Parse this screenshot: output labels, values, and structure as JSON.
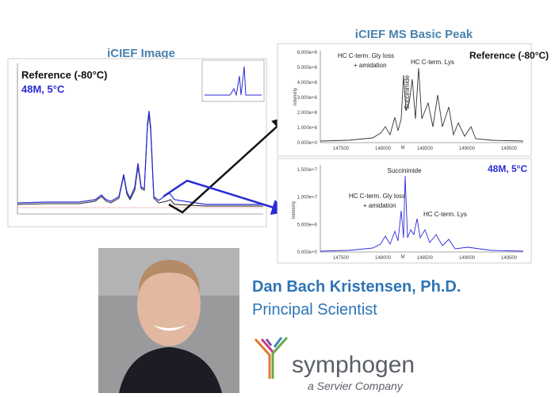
{
  "left_panel": {
    "title": "iCIEF Image",
    "legend": [
      "Reference (-80°C)",
      "48M, 5°C"
    ]
  },
  "right_panel": {
    "title": "iCIEF MS Basic Peak",
    "top_chart": {
      "label": "Reference (-80°C)",
      "y_axis_label": "Intensity",
      "yticks": [
        "6.000e+6",
        "5.000e+6",
        "4.000e+6",
        "3.000e+6",
        "2.000e+6",
        "1.000e+6",
        "0.000e+0"
      ],
      "xticks": [
        "147500",
        "148000",
        "148500",
        "149000",
        "149500"
      ],
      "x_marker": "M",
      "annotations": [
        "HC C-term. Gly loss",
        "+ amidation",
        "HC C-term. Lys",
        "Succinimide"
      ]
    },
    "bottom_chart": {
      "label": "48M, 5°C",
      "y_axis_label": "Intensity",
      "yticks": [
        "1.500e+7",
        "1.000e+7",
        "5.000e+6",
        "0.000e+0"
      ],
      "xticks": [
        "147500",
        "148000",
        "148500",
        "149000",
        "149500"
      ],
      "x_marker": "M",
      "annotations": [
        "Succinimide",
        "HC C-term. Gly loss",
        "+ amidation",
        "HC C-term. Lys"
      ]
    }
  },
  "person": {
    "name": "Dan Bach Kristensen, Ph.D.",
    "role": "Principal Scientist"
  },
  "logo": {
    "name": "symphogen",
    "tagline": "a Servier Company"
  }
}
